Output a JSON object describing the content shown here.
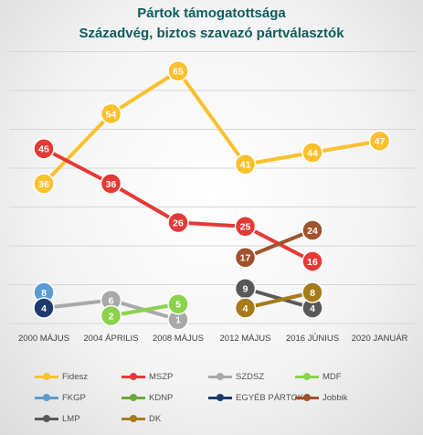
{
  "chart_data": {
    "type": "line",
    "title": "Pártok támogatottsága",
    "subtitle": "Századvég, biztos szavazó pártválasztók",
    "categories": [
      "2000 MÁJUS",
      "2004 ÁPRILIS",
      "2008 MÁJUS",
      "2012 MÁJUS",
      "2016 JÚNIUS",
      "2020 JANUÁR"
    ],
    "ylim": [
      0,
      70
    ],
    "grid": true,
    "legend_position": "bottom",
    "series": [
      {
        "name": "Fidesz",
        "color": "#FBC02D",
        "values": [
          36,
          54,
          65,
          41,
          44,
          47
        ]
      },
      {
        "name": "MSZP",
        "color": "#E53935",
        "values": [
          45,
          36,
          26,
          25,
          16,
          null
        ]
      },
      {
        "name": "SZDSZ",
        "color": "#A9A9A9",
        "values": [
          4,
          6,
          1,
          null,
          null,
          null
        ]
      },
      {
        "name": "MDF",
        "color": "#8BD34A",
        "values": [
          null,
          2,
          5,
          null,
          null,
          null
        ]
      },
      {
        "name": "FKGP",
        "color": "#5B9BD5",
        "values": [
          8,
          null,
          null,
          null,
          null,
          null
        ]
      },
      {
        "name": "KDNP",
        "color": "#6AAA3A",
        "values": [
          null,
          null,
          null,
          null,
          null,
          null
        ]
      },
      {
        "name": "EGYÉB PÁRTOK",
        "color": "#1F3A6E",
        "values": [
          4,
          null,
          null,
          null,
          null,
          null
        ]
      },
      {
        "name": "Jobbik",
        "color": "#A0522D",
        "values": [
          null,
          null,
          null,
          17,
          24,
          null
        ]
      },
      {
        "name": "LMP",
        "color": "#595959",
        "values": [
          null,
          null,
          null,
          9,
          4,
          null
        ]
      },
      {
        "name": "DK",
        "color": "#A67C1A",
        "values": [
          null,
          null,
          null,
          4,
          8,
          null
        ]
      }
    ]
  }
}
